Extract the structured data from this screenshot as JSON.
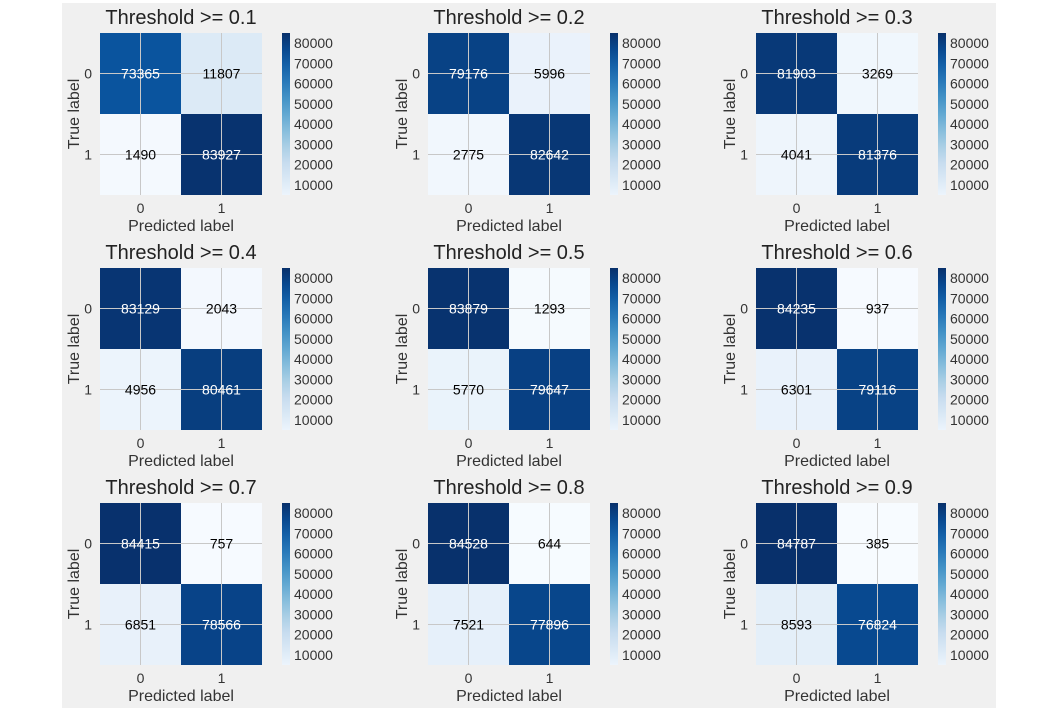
{
  "chart_data": [
    {
      "type": "heatmap",
      "title": "Threshold >= 0.1",
      "matrix": [
        [
          73365,
          11807
        ],
        [
          1490,
          83927
        ]
      ],
      "x_ticks": [
        "0",
        "1"
      ],
      "y_ticks": [
        "0",
        "1"
      ],
      "xlabel": "Predicted label",
      "ylabel": "True label",
      "colorbar_ticks": [
        "80000",
        "70000",
        "60000",
        "50000",
        "40000",
        "30000",
        "20000",
        "10000"
      ],
      "colormap": "Blues"
    },
    {
      "type": "heatmap",
      "title": "Threshold >= 0.2",
      "matrix": [
        [
          79176,
          5996
        ],
        [
          2775,
          82642
        ]
      ],
      "x_ticks": [
        "0",
        "1"
      ],
      "y_ticks": [
        "0",
        "1"
      ],
      "xlabel": "Predicted label",
      "ylabel": "True label",
      "colorbar_ticks": [
        "80000",
        "70000",
        "60000",
        "50000",
        "40000",
        "30000",
        "20000",
        "10000"
      ],
      "colormap": "Blues"
    },
    {
      "type": "heatmap",
      "title": "Threshold >= 0.3",
      "matrix": [
        [
          81903,
          3269
        ],
        [
          4041,
          81376
        ]
      ],
      "x_ticks": [
        "0",
        "1"
      ],
      "y_ticks": [
        "0",
        "1"
      ],
      "xlabel": "Predicted label",
      "ylabel": "True label",
      "colorbar_ticks": [
        "80000",
        "70000",
        "60000",
        "50000",
        "40000",
        "30000",
        "20000",
        "10000"
      ],
      "colormap": "Blues"
    },
    {
      "type": "heatmap",
      "title": "Threshold >= 0.4",
      "matrix": [
        [
          83129,
          2043
        ],
        [
          4956,
          80461
        ]
      ],
      "x_ticks": [
        "0",
        "1"
      ],
      "y_ticks": [
        "0",
        "1"
      ],
      "xlabel": "Predicted label",
      "ylabel": "True label",
      "colorbar_ticks": [
        "80000",
        "70000",
        "60000",
        "50000",
        "40000",
        "30000",
        "20000",
        "10000"
      ],
      "colormap": "Blues"
    },
    {
      "type": "heatmap",
      "title": "Threshold >= 0.5",
      "matrix": [
        [
          83879,
          1293
        ],
        [
          5770,
          79647
        ]
      ],
      "x_ticks": [
        "0",
        "1"
      ],
      "y_ticks": [
        "0",
        "1"
      ],
      "xlabel": "Predicted label",
      "ylabel": "True label",
      "colorbar_ticks": [
        "80000",
        "70000",
        "60000",
        "50000",
        "40000",
        "30000",
        "20000",
        "10000"
      ],
      "colormap": "Blues"
    },
    {
      "type": "heatmap",
      "title": "Threshold >= 0.6",
      "matrix": [
        [
          84235,
          937
        ],
        [
          6301,
          79116
        ]
      ],
      "x_ticks": [
        "0",
        "1"
      ],
      "y_ticks": [
        "0",
        "1"
      ],
      "xlabel": "Predicted label",
      "ylabel": "True label",
      "colorbar_ticks": [
        "80000",
        "70000",
        "60000",
        "50000",
        "40000",
        "30000",
        "20000",
        "10000"
      ],
      "colormap": "Blues"
    },
    {
      "type": "heatmap",
      "title": "Threshold >= 0.7",
      "matrix": [
        [
          84415,
          757
        ],
        [
          6851,
          78566
        ]
      ],
      "x_ticks": [
        "0",
        "1"
      ],
      "y_ticks": [
        "0",
        "1"
      ],
      "xlabel": "Predicted label",
      "ylabel": "True label",
      "colorbar_ticks": [
        "80000",
        "70000",
        "60000",
        "50000",
        "40000",
        "30000",
        "20000",
        "10000"
      ],
      "colormap": "Blues"
    },
    {
      "type": "heatmap",
      "title": "Threshold >= 0.8",
      "matrix": [
        [
          84528,
          644
        ],
        [
          7521,
          77896
        ]
      ],
      "x_ticks": [
        "0",
        "1"
      ],
      "y_ticks": [
        "0",
        "1"
      ],
      "xlabel": "Predicted label",
      "ylabel": "True label",
      "colorbar_ticks": [
        "80000",
        "70000",
        "60000",
        "50000",
        "40000",
        "30000",
        "20000",
        "10000"
      ],
      "colormap": "Blues"
    },
    {
      "type": "heatmap",
      "title": "Threshold >= 0.9",
      "matrix": [
        [
          84787,
          385
        ],
        [
          8593,
          76824
        ]
      ],
      "x_ticks": [
        "0",
        "1"
      ],
      "y_ticks": [
        "0",
        "1"
      ],
      "xlabel": "Predicted label",
      "ylabel": "True label",
      "colorbar_ticks": [
        "80000",
        "70000",
        "60000",
        "50000",
        "40000",
        "30000",
        "20000",
        "10000"
      ],
      "colormap": "Blues"
    }
  ],
  "colors": {
    "background": "#f0f0f0",
    "grid": "#c8c8c8",
    "text_dark": "#000000",
    "text_light": "#ffffff",
    "blues_scale": [
      "#f7fbff",
      "#deebf7",
      "#c6dbef",
      "#9ecae1",
      "#6baed6",
      "#4292c6",
      "#2171b5",
      "#08519c",
      "#08306b"
    ]
  }
}
